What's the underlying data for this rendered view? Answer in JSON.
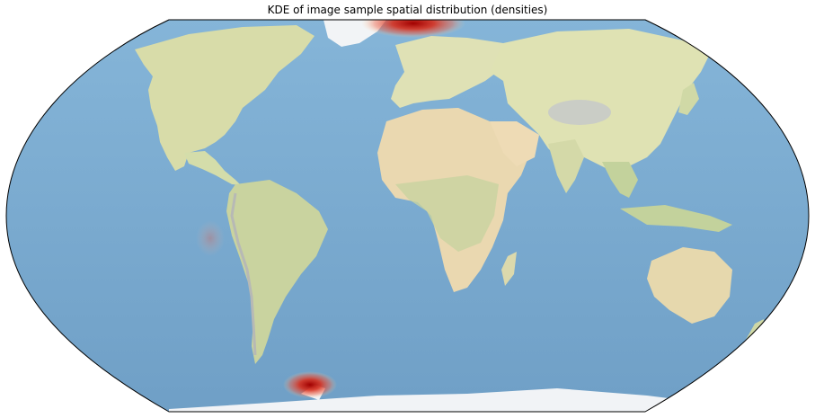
{
  "title": "KDE of image sample spatial distribution (densities)",
  "colors": {
    "ocean": "#7fb1d6",
    "ocean_deep": "#6aa0c8",
    "land": "#e6e2b4",
    "land_green": "#c9d6a4",
    "land_desert": "#ecd8b4",
    "ice": "#f3f5f8",
    "mountain": "#b9bcc0",
    "kde_hot": "#c80000",
    "kde_mid": "#e34a33",
    "outline": "#000000"
  },
  "kde_hotspots": [
    {
      "name": "greenland-strait",
      "density": 1.0
    },
    {
      "name": "south-shetland-antarctic-peninsula",
      "density": 0.85
    },
    {
      "name": "eastern-pacific-galapagos",
      "density": 0.25
    }
  ]
}
